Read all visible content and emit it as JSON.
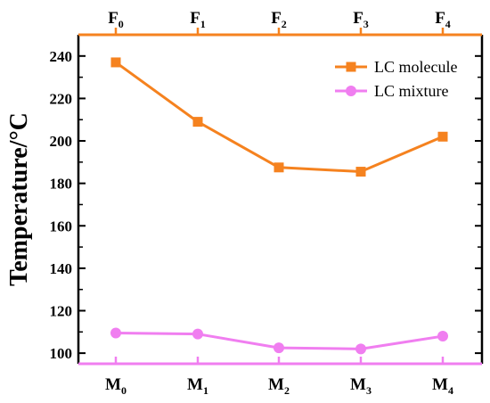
{
  "chart_data": {
    "type": "line",
    "ylabel": "Temperature/°C",
    "ylim": [
      95,
      250
    ],
    "yticks": [
      100,
      120,
      140,
      160,
      180,
      200,
      220,
      240
    ],
    "bottom_categories": [
      {
        "main": "M",
        "sub": "0"
      },
      {
        "main": "M",
        "sub": "1"
      },
      {
        "main": "M",
        "sub": "2"
      },
      {
        "main": "M",
        "sub": "3"
      },
      {
        "main": "M",
        "sub": "4"
      }
    ],
    "top_categories": [
      {
        "main": "F",
        "sub": "0"
      },
      {
        "main": "F",
        "sub": "1"
      },
      {
        "main": "F",
        "sub": "2"
      },
      {
        "main": "F",
        "sub": "3"
      },
      {
        "main": "F",
        "sub": "4"
      }
    ],
    "series": [
      {
        "name": "LC molecule",
        "values": [
          237,
          209,
          187.5,
          185.5,
          202
        ],
        "color": "#f5821f",
        "marker": "square"
      },
      {
        "name": "LC mixture",
        "values": [
          109.5,
          109,
          102.5,
          102,
          108
        ],
        "color": "#f07ef0",
        "marker": "circle"
      }
    ],
    "legend_position": "top-right",
    "grid": false
  }
}
